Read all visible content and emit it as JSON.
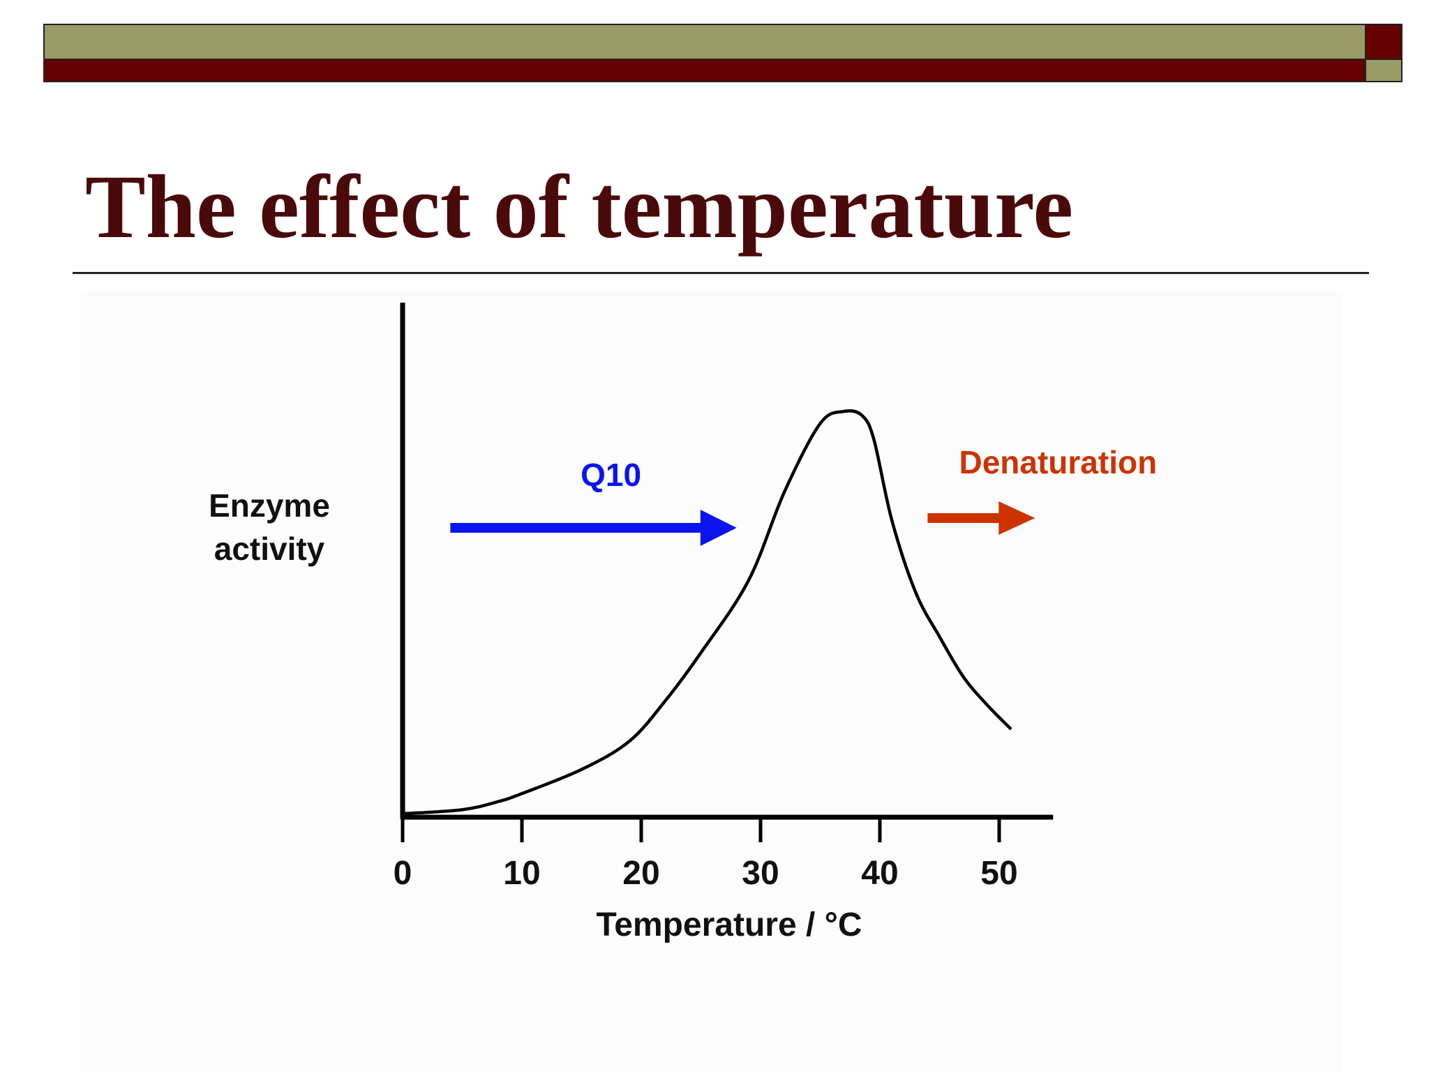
{
  "slide": {
    "title": "The effect of temperature",
    "colors": {
      "title": "#4a0a0a",
      "band_olive": "#9a9b67",
      "band_red": "#660000"
    }
  },
  "chart_data": {
    "type": "line",
    "title": "",
    "xlabel": "Temperature / °C",
    "ylabel": "Enzyme activity",
    "ylabel_lines": [
      "Enzyme",
      "activity"
    ],
    "xlim": [
      0,
      53
    ],
    "xticks": [
      0,
      10,
      20,
      30,
      40,
      50
    ],
    "xtick_labels": [
      "0",
      "10",
      "20",
      "30",
      "40",
      "50"
    ],
    "y_ticks_shown": false,
    "grid": false,
    "legend": "none",
    "series": [
      {
        "color": "#000000",
        "x": [
          0,
          5,
          8,
          10,
          15,
          19,
          22,
          25,
          29,
          32,
          35,
          37,
          38.5,
          39.5,
          41,
          43,
          45,
          47,
          49,
          51
        ],
        "y": [
          0,
          0.01,
          0.03,
          0.05,
          0.11,
          0.18,
          0.28,
          0.4,
          0.58,
          0.8,
          0.97,
          1.0,
          0.99,
          0.93,
          0.73,
          0.55,
          0.44,
          0.34,
          0.27,
          0.21
        ]
      }
    ],
    "annotations": [
      {
        "text": "Q10",
        "color": "#0a14ee",
        "arrow_from_x": 4,
        "arrow_to_x": 28
      },
      {
        "text": "Denaturation",
        "color": "#cc3300",
        "arrow_from_x": 44,
        "arrow_to_x": 53
      }
    ]
  }
}
